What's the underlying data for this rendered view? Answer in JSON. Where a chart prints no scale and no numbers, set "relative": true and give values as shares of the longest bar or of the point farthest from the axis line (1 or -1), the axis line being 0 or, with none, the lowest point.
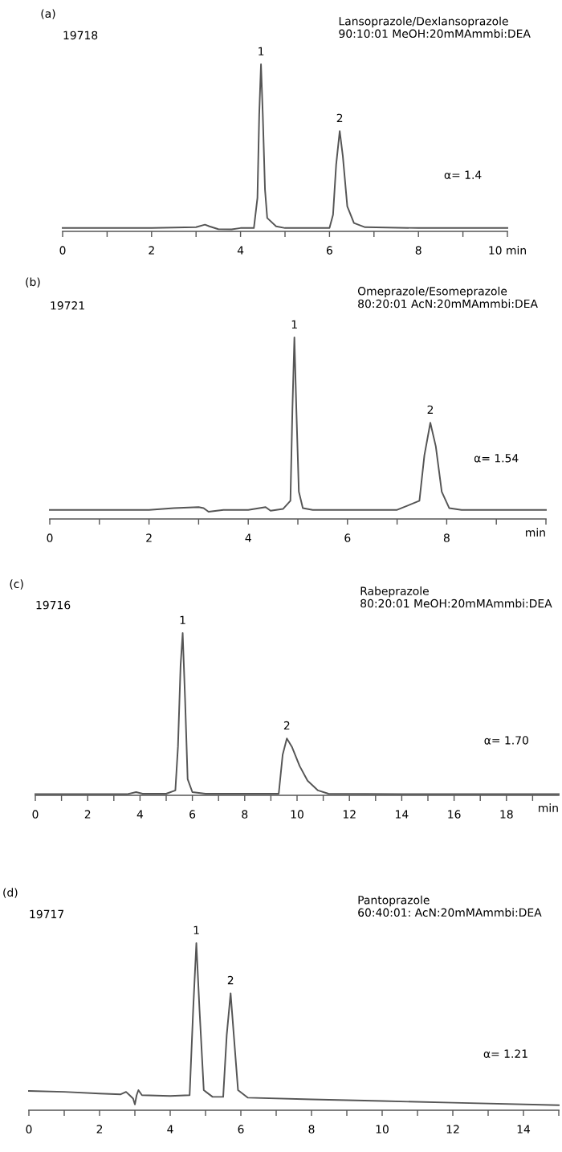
{
  "chart_data": [
    {
      "type": "line",
      "relative": true,
      "title": "Lansoprazole/Dexlansoprazole",
      "subtitle": "90:10:01 MeOH:20mMAmmbi:DEA",
      "x": [
        0,
        1,
        2,
        3,
        3.2,
        3.3,
        3.5,
        3.8,
        4.0,
        4.3,
        4.38,
        4.42,
        4.46,
        4.5,
        4.55,
        4.6,
        4.8,
        5,
        6.0,
        6.08,
        6.15,
        6.23,
        6.3,
        6.4,
        6.55,
        6.8,
        8,
        10
      ],
      "series": [
        {
          "color": "#555555",
          "values": [
            0.02,
            0.02,
            0.02,
            0.025,
            0.04,
            0.03,
            0.013,
            0.012,
            0.02,
            0.02,
            0.2,
            0.7,
            1.0,
            0.7,
            0.25,
            0.08,
            0.03,
            0.02,
            0.02,
            0.1,
            0.4,
            0.6,
            0.45,
            0.15,
            0.05,
            0.025,
            0.02,
            0.02
          ]
        }
      ],
      "xlim": [
        0,
        10
      ],
      "xticks": [
        0,
        {
          "value": 1,
          "label": null
        },
        2,
        {
          "value": 3,
          "label": null
        },
        4,
        {
          "value": 5,
          "label": null
        },
        6,
        {
          "value": 7,
          "label": null
        },
        8,
        {
          "value": 9,
          "label": null
        },
        {
          "value": 10,
          "label": "10 min"
        }
      ],
      "annotations": [
        "(a)",
        "19718",
        "α= 1.4",
        {
          "text": "1",
          "x": 4.46,
          "y": 1.0
        },
        {
          "text": "2",
          "x": 6.23,
          "y": 0.6
        }
      ]
    },
    {
      "type": "line",
      "relative": true,
      "title": "Omeprazole/Esomeprazole",
      "subtitle": "80:20:01 AcN:20mMAmmbi:DEA",
      "xlabel": "min",
      "x": [
        0,
        1,
        2,
        2.5,
        3.0,
        3.1,
        3.2,
        3.5,
        4.0,
        4.35,
        4.45,
        4.7,
        4.85,
        4.89,
        4.93,
        4.97,
        5.02,
        5.1,
        5.3,
        6,
        7,
        7.45,
        7.55,
        7.67,
        7.78,
        7.9,
        8.05,
        8.3,
        9,
        10
      ],
      "series": [
        {
          "color": "#555555",
          "values": [
            0.05,
            0.05,
            0.05,
            0.06,
            0.065,
            0.06,
            0.04,
            0.05,
            0.05,
            0.065,
            0.045,
            0.055,
            0.1,
            0.6,
            1.0,
            0.6,
            0.15,
            0.06,
            0.05,
            0.05,
            0.05,
            0.1,
            0.35,
            0.53,
            0.4,
            0.15,
            0.06,
            0.05,
            0.05,
            0.05
          ]
        }
      ],
      "xlim": [
        0,
        10
      ],
      "xticks": [
        0,
        {
          "value": 1,
          "label": null
        },
        2,
        {
          "value": 3,
          "label": null
        },
        4,
        {
          "value": 5,
          "label": null
        },
        6,
        {
          "value": 7,
          "label": null
        },
        8,
        {
          "value": 9,
          "label": null
        },
        {
          "value": 10,
          "label": null
        }
      ],
      "annotations": [
        "(b)",
        "19721",
        "α= 1.54",
        {
          "text": "1",
          "x": 4.93,
          "y": 1.0
        },
        {
          "text": "2",
          "x": 7.67,
          "y": 0.53
        }
      ]
    },
    {
      "type": "line",
      "relative": true,
      "title": "Rabeprazole",
      "subtitle": "80:20:01 MeOH:20mMAmmbi:DEA",
      "xlabel": "min",
      "x": [
        0,
        2,
        3.5,
        3.85,
        4.1,
        5.0,
        5.35,
        5.45,
        5.55,
        5.63,
        5.72,
        5.82,
        6.0,
        6.5,
        8,
        9.3,
        9.45,
        9.61,
        9.8,
        10.1,
        10.4,
        10.8,
        11.2,
        14,
        20
      ],
      "series": [
        {
          "color": "#555555",
          "values": [
            0.007,
            0.007,
            0.007,
            0.02,
            0.01,
            0.01,
            0.03,
            0.3,
            0.8,
            1.0,
            0.6,
            0.1,
            0.02,
            0.01,
            0.01,
            0.01,
            0.25,
            0.35,
            0.3,
            0.18,
            0.09,
            0.03,
            0.01,
            0.007,
            0.007
          ]
        }
      ],
      "xlim": [
        0,
        20
      ],
      "xticks": [
        0,
        {
          "value": 1,
          "label": null
        },
        2,
        {
          "value": 3,
          "label": null
        },
        4,
        {
          "value": 5,
          "label": null
        },
        6,
        {
          "value": 7,
          "label": null
        },
        8,
        {
          "value": 9,
          "label": null
        },
        10,
        {
          "value": 11,
          "label": null
        },
        12,
        {
          "value": 13,
          "label": null
        },
        14,
        {
          "value": 15,
          "label": null
        },
        16,
        {
          "value": 17,
          "label": null
        },
        18,
        {
          "value": 19,
          "label": null
        }
      ],
      "annotations": [
        "(c)",
        "19716",
        "α= 1.70",
        {
          "text": "1",
          "x": 5.63,
          "y": 1.0
        },
        {
          "text": "2",
          "x": 9.61,
          "y": 0.35
        }
      ]
    },
    {
      "type": "line",
      "relative": true,
      "title": "Pantoprazole",
      "subtitle": "60:40:01: AcN:20mMAmmbi:DEA",
      "x": [
        0,
        1,
        2,
        2.6,
        2.75,
        2.85,
        2.95,
        3.0,
        3.05,
        3.1,
        3.2,
        4,
        4.55,
        4.65,
        4.74,
        4.83,
        4.95,
        5.2,
        5.5,
        5.6,
        5.71,
        5.8,
        5.92,
        6.2,
        8,
        10,
        12,
        15
      ],
      "series": [
        {
          "color": "#555555",
          "values": [
            0.115,
            0.11,
            0.1,
            0.095,
            0.11,
            0.09,
            0.07,
            0.035,
            0.09,
            0.12,
            0.09,
            0.085,
            0.09,
            0.6,
            1.0,
            0.6,
            0.12,
            0.08,
            0.08,
            0.45,
            0.7,
            0.45,
            0.12,
            0.075,
            0.065,
            0.055,
            0.045,
            0.03
          ]
        }
      ],
      "xlim": [
        0,
        15
      ],
      "xticks": [
        0,
        {
          "value": 1,
          "label": null
        },
        2,
        {
          "value": 3,
          "label": null
        },
        4,
        {
          "value": 5,
          "label": null
        },
        6,
        {
          "value": 7,
          "label": null
        },
        8,
        {
          "value": 9,
          "label": null
        },
        10,
        {
          "value": 11,
          "label": null
        },
        12,
        {
          "value": 13,
          "label": null
        },
        14,
        {
          "value": 15,
          "label": null
        }
      ],
      "annotations": [
        "(d)",
        "19717",
        "α= 1.21",
        {
          "text": "1",
          "x": 4.74,
          "y": 1.0
        },
        {
          "text": "2",
          "x": 5.71,
          "y": 0.7
        }
      ]
    }
  ]
}
